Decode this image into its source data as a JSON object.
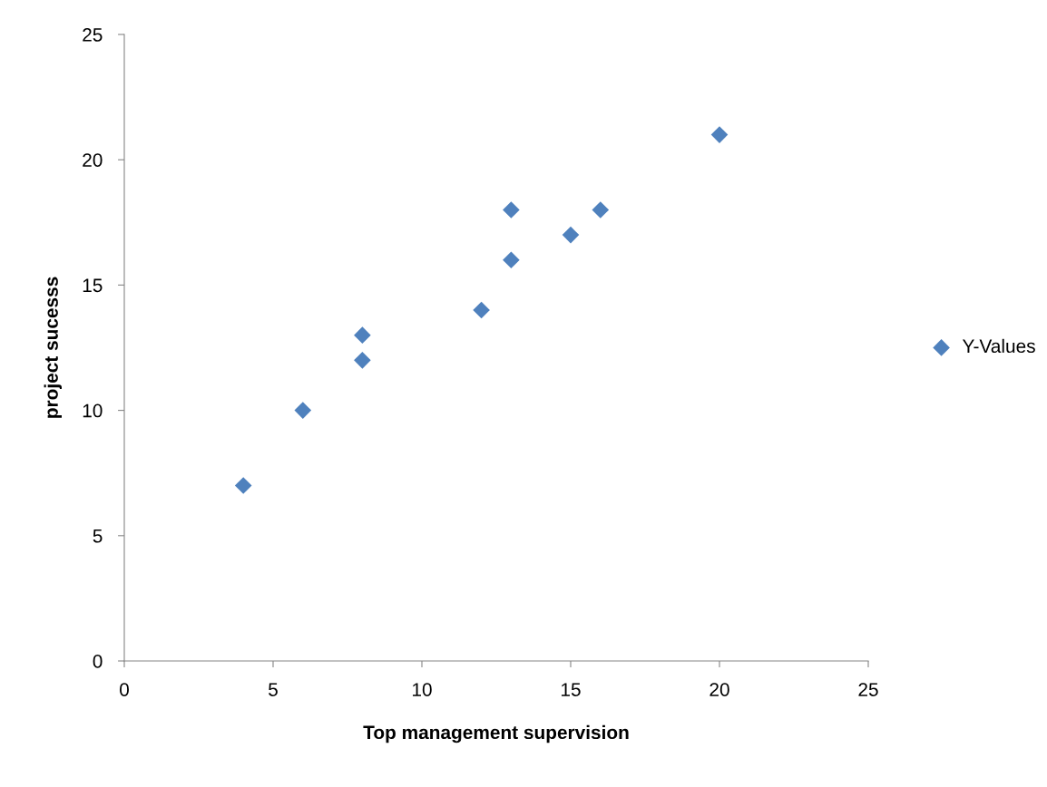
{
  "chart_data": {
    "type": "scatter",
    "xlabel": "Top management supervision",
    "ylabel": "project sucesss",
    "x": [
      4,
      6,
      8,
      8,
      12,
      13,
      13,
      15,
      16,
      20
    ],
    "series": [
      {
        "name": "Y-Values",
        "color": "#4f81bd",
        "values": [
          7,
          10,
          13,
          12,
          14,
          18,
          16,
          17,
          18,
          21
        ]
      }
    ],
    "xlim": [
      0,
      25
    ],
    "xticks": [
      0,
      5,
      10,
      15,
      20,
      25
    ],
    "ylim": [
      0,
      25
    ],
    "yticks": [
      0,
      5,
      10,
      15,
      20,
      25
    ],
    "marker": "diamond",
    "grid": false,
    "legend": "right"
  }
}
